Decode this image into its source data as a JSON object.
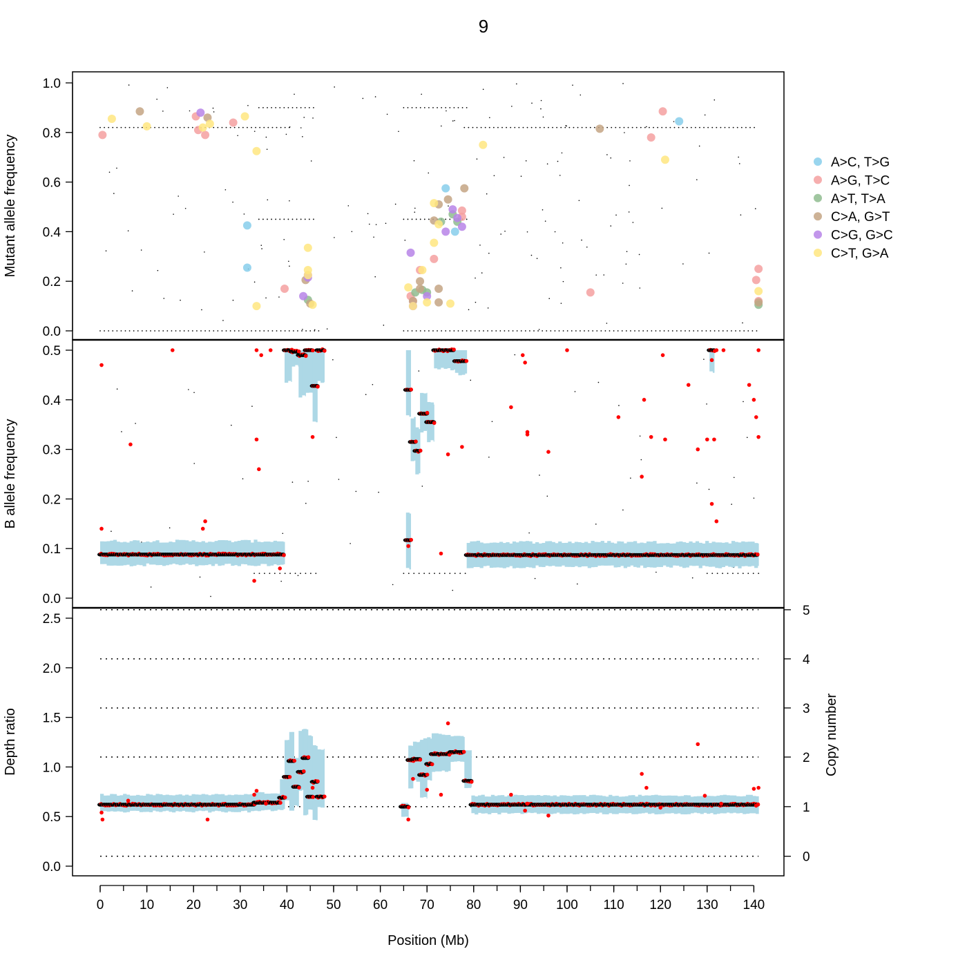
{
  "chart_data": [
    {
      "type": "scatter",
      "panel": "mutant_af",
      "title": "9",
      "ylabel": "Mutant allele frequency",
      "ylim": [
        0,
        1
      ],
      "yticks": [
        "0.0",
        "0.2",
        "0.4",
        "0.6",
        "0.8",
        "1.0"
      ],
      "ytick_values": [
        0,
        0.2,
        0.4,
        0.6,
        0.8,
        1.0
      ],
      "xlim": [
        0,
        141
      ],
      "reference_lines": [
        0,
        0.45,
        0.82,
        0.9
      ],
      "legend": {
        "placement": "right",
        "entries": [
          {
            "label": "A>C, T>G",
            "color": "#87CEEB"
          },
          {
            "label": "A>G, T>C",
            "color": "#F4A0A0"
          },
          {
            "label": "A>T, T>A",
            "color": "#8FBC8F"
          },
          {
            "label": "C>A, G>T",
            "color": "#C4A484"
          },
          {
            "label": "C>G, G>C",
            "color": "#B784E8"
          },
          {
            "label": "C>T, G>A",
            "color": "#FFE680"
          }
        ]
      },
      "series": [
        {
          "name": "A>C, T>G",
          "color": "#87CEEB",
          "points": [
            [
              31.5,
              0.425
            ],
            [
              31.5,
              0.255
            ],
            [
              74,
              0.575
            ],
            [
              76,
              0.4
            ],
            [
              124,
              0.845
            ]
          ]
        },
        {
          "name": "A>G, T>C",
          "color": "#F4A0A0",
          "points": [
            [
              0.5,
              0.79
            ],
            [
              20.5,
              0.865
            ],
            [
              21,
              0.81
            ],
            [
              22.5,
              0.79
            ],
            [
              28.5,
              0.84
            ],
            [
              39.5,
              0.17
            ],
            [
              66.5,
              0.14
            ],
            [
              67,
              0.12
            ],
            [
              68.5,
              0.245
            ],
            [
              71.5,
              0.29
            ],
            [
              77.5,
              0.485
            ],
            [
              77.5,
              0.46
            ],
            [
              105,
              0.155
            ],
            [
              118,
              0.78
            ],
            [
              120.5,
              0.885
            ],
            [
              141,
              0.25
            ],
            [
              140.5,
              0.205
            ],
            [
              141,
              0.12
            ]
          ]
        },
        {
          "name": "A>T, T>A",
          "color": "#8FBC8F",
          "points": [
            [
              44.5,
              0.125
            ],
            [
              67.5,
              0.155
            ],
            [
              69,
              0.165
            ],
            [
              70,
              0.155
            ],
            [
              73,
              0.44
            ],
            [
              75.5,
              0.47
            ],
            [
              76.5,
              0.44
            ],
            [
              141,
              0.105
            ]
          ]
        },
        {
          "name": "C>A, G>T",
          "color": "#C4A484",
          "points": [
            [
              8.5,
              0.885
            ],
            [
              23,
              0.86
            ],
            [
              44,
              0.205
            ],
            [
              45,
              0.11
            ],
            [
              67,
              0.12
            ],
            [
              68.5,
              0.2
            ],
            [
              68.5,
              0.17
            ],
            [
              71.5,
              0.445
            ],
            [
              72.5,
              0.51
            ],
            [
              72.5,
              0.17
            ],
            [
              72.5,
              0.115
            ],
            [
              74.5,
              0.53
            ],
            [
              78,
              0.575
            ],
            [
              107,
              0.815
            ],
            [
              141,
              0.115
            ]
          ]
        },
        {
          "name": "C>G, G>C",
          "color": "#B784E8",
          "points": [
            [
              21.5,
              0.88
            ],
            [
              43.5,
              0.14
            ],
            [
              44.5,
              0.215
            ],
            [
              44.5,
              0.225
            ],
            [
              66.5,
              0.315
            ],
            [
              67,
              0.1
            ],
            [
              70,
              0.14
            ],
            [
              74,
              0.4
            ],
            [
              75.5,
              0.49
            ],
            [
              77.5,
              0.42
            ],
            [
              76.5,
              0.455
            ]
          ]
        },
        {
          "name": "C>T, G>A",
          "color": "#FFE680",
          "points": [
            [
              2.5,
              0.855
            ],
            [
              10,
              0.825
            ],
            [
              22,
              0.82
            ],
            [
              23.5,
              0.835
            ],
            [
              31,
              0.865
            ],
            [
              33.5,
              0.725
            ],
            [
              33.5,
              0.1
            ],
            [
              44.5,
              0.335
            ],
            [
              44.5,
              0.245
            ],
            [
              44.5,
              0.225
            ],
            [
              45.5,
              0.105
            ],
            [
              66,
              0.175
            ],
            [
              67,
              0.1
            ],
            [
              69,
              0.245
            ],
            [
              70,
              0.115
            ],
            [
              71.5,
              0.515
            ],
            [
              71.5,
              0.355
            ],
            [
              72.5,
              0.43
            ],
            [
              75,
              0.11
            ],
            [
              82,
              0.75
            ],
            [
              121,
              0.69
            ],
            [
              141,
              0.16
            ]
          ]
        }
      ]
    },
    {
      "type": "scatter",
      "panel": "baf",
      "ylabel": "B allele frequency",
      "ylim": [
        0,
        0.5
      ],
      "yticks": [
        "0.0",
        "0.1",
        "0.2",
        "0.3",
        "0.4",
        "0.5"
      ],
      "ytick_values": [
        0,
        0.1,
        0.2,
        0.3,
        0.4,
        0.5
      ],
      "xlim": [
        0,
        141
      ],
      "reference_lines": [
        0.05,
        0.5
      ],
      "segments": [
        {
          "x": [
            0,
            39.5
          ],
          "y": 0.088,
          "low": 0.07,
          "high": 0.112
        },
        {
          "x": [
            39.5,
            41
          ],
          "y": 0.5,
          "low": 0.44,
          "high": 0.5
        },
        {
          "x": [
            41,
            42.5
          ],
          "y": 0.497,
          "low": 0.47,
          "high": 0.5
        },
        {
          "x": [
            42.5,
            44
          ],
          "y": 0.49,
          "low": 0.41,
          "high": 0.5
        },
        {
          "x": [
            44,
            45.5
          ],
          "y": 0.5,
          "low": 0.42,
          "high": 0.5
        },
        {
          "x": [
            45.5,
            46.5
          ],
          "y": 0.428,
          "low": 0.36,
          "high": 0.5
        },
        {
          "x": [
            46.5,
            48
          ],
          "y": 0.5,
          "low": 0.44,
          "high": 0.5
        },
        {
          "x": [
            65.5,
            66.5
          ],
          "y": 0.42,
          "low": 0.37,
          "high": 0.5
        },
        {
          "x": [
            66.5,
            67.5
          ],
          "y": 0.315,
          "low": 0.28,
          "high": 0.36
        },
        {
          "x": [
            67.5,
            68.5
          ],
          "y": 0.297,
          "low": 0.255,
          "high": 0.34
        },
        {
          "x": [
            68.5,
            70
          ],
          "y": 0.372,
          "low": 0.34,
          "high": 0.41
        },
        {
          "x": [
            70,
            71.5
          ],
          "y": 0.355,
          "low": 0.32,
          "high": 0.39
        },
        {
          "x": [
            71.5,
            76
          ],
          "y": 0.5,
          "low": 0.465,
          "high": 0.5
        },
        {
          "x": [
            76,
            78.5
          ],
          "y": 0.478,
          "low": 0.455,
          "high": 0.5
        },
        {
          "x": [
            65.5,
            66.5
          ],
          "y": 0.117,
          "low": 0.063,
          "high": 0.17
        },
        {
          "x": [
            78.5,
            141
          ],
          "y": 0.087,
          "low": 0.066,
          "high": 0.11
        },
        {
          "x": [
            130.5,
            131.5
          ],
          "y": 0.5,
          "low": 0.46,
          "high": 0.5
        }
      ],
      "outliers": [
        [
          0.3,
          0.47
        ],
        [
          0.3,
          0.14
        ],
        [
          6.5,
          0.31
        ],
        [
          15.5,
          0.5
        ],
        [
          22,
          0.14
        ],
        [
          22.5,
          0.155
        ],
        [
          33,
          0.035
        ],
        [
          33.5,
          0.32
        ],
        [
          34,
          0.26
        ],
        [
          33.5,
          0.5
        ],
        [
          34.5,
          0.49
        ],
        [
          36.5,
          0.5
        ],
        [
          38.5,
          0.06
        ],
        [
          45.5,
          0.325
        ],
        [
          66,
          0.105
        ],
        [
          73,
          0.09
        ],
        [
          74.5,
          0.29
        ],
        [
          77.5,
          0.305
        ],
        [
          88,
          0.385
        ],
        [
          90.5,
          0.49
        ],
        [
          91,
          0.475
        ],
        [
          91.5,
          0.335
        ],
        [
          91.5,
          0.33
        ],
        [
          96,
          0.295
        ],
        [
          100,
          0.5
        ],
        [
          111,
          0.365
        ],
        [
          116,
          0.245
        ],
        [
          116.5,
          0.4
        ],
        [
          118,
          0.325
        ],
        [
          120.5,
          0.49
        ],
        [
          121,
          0.32
        ],
        [
          126,
          0.43
        ],
        [
          128,
          0.3
        ],
        [
          130,
          0.32
        ],
        [
          131,
          0.19
        ],
        [
          131,
          0.48
        ],
        [
          131.5,
          0.32
        ],
        [
          132,
          0.155
        ],
        [
          132,
          0.5
        ],
        [
          133.5,
          0.5
        ],
        [
          139,
          0.43
        ],
        [
          140,
          0.4
        ],
        [
          140.5,
          0.365
        ],
        [
          141,
          0.325
        ],
        [
          141,
          0.5
        ]
      ]
    },
    {
      "type": "scatter",
      "panel": "depth_ratio",
      "ylabel": "Depth ratio",
      "ylabel_right": "Copy number",
      "xlabel": "Position (Mb)",
      "ylim": [
        -0.1,
        2.6
      ],
      "yticks": [
        "0.0",
        "0.5",
        "1.0",
        "1.5",
        "2.0",
        "2.5"
      ],
      "ytick_values": [
        0,
        0.5,
        1.0,
        1.5,
        2.0,
        2.5
      ],
      "right_ticks": [
        "0",
        "1",
        "2",
        "3",
        "4",
        "5"
      ],
      "copy_number_ratios": [
        0.1,
        0.6,
        1.1,
        1.595,
        2.09,
        2.585
      ],
      "xticks": [
        "0",
        "10",
        "20",
        "30",
        "40",
        "50",
        "60",
        "70",
        "80",
        "90",
        "100",
        "110",
        "120",
        "130",
        "140"
      ],
      "xtick_values": [
        0,
        10,
        20,
        30,
        40,
        50,
        60,
        70,
        80,
        90,
        100,
        110,
        120,
        130,
        140
      ],
      "xlim": [
        0,
        141
      ],
      "segments": [
        {
          "x": [
            0,
            33
          ],
          "y": 0.62,
          "low": 0.56,
          "high": 0.71
        },
        {
          "x": [
            33,
            38.5
          ],
          "y": 0.64,
          "low": 0.57,
          "high": 0.73
        },
        {
          "x": [
            38.5,
            39.5
          ],
          "y": 0.69,
          "low": 0.58,
          "high": 0.86
        },
        {
          "x": [
            39.5,
            40.5
          ],
          "y": 0.9,
          "low": 0.68,
          "high": 1.27
        },
        {
          "x": [
            40.5,
            41.5
          ],
          "y": 1.06,
          "low": 0.56,
          "high": 1.34
        },
        {
          "x": [
            41.5,
            42.5
          ],
          "y": 0.8,
          "low": 0.62,
          "high": 1.09
        },
        {
          "x": [
            42.5,
            43.5
          ],
          "y": 0.95,
          "low": 0.77,
          "high": 1.36
        },
        {
          "x": [
            43.5,
            44.5
          ],
          "y": 1.09,
          "low": 0.53,
          "high": 1.37
        },
        {
          "x": [
            44.5,
            45.5
          ],
          "y": 0.7,
          "low": 0.58,
          "high": 1.31
        },
        {
          "x": [
            45.5,
            46.5
          ],
          "y": 0.85,
          "low": 0.47,
          "high": 1.21
        },
        {
          "x": [
            46.5,
            48
          ],
          "y": 0.7,
          "low": 0.6,
          "high": 1.17
        },
        {
          "x": [
            64.5,
            66
          ],
          "y": 0.6,
          "low": 0.5,
          "high": 0.62
        },
        {
          "x": [
            66,
            67
          ],
          "y": 1.07,
          "low": 0.8,
          "high": 1.21
        },
        {
          "x": [
            67,
            68.5
          ],
          "y": 1.08,
          "low": 0.87,
          "high": 1.24
        },
        {
          "x": [
            68.5,
            70
          ],
          "y": 0.92,
          "low": 0.7,
          "high": 1.27
        },
        {
          "x": [
            70,
            71
          ],
          "y": 1.03,
          "low": 0.87,
          "high": 1.28
        },
        {
          "x": [
            71,
            75
          ],
          "y": 1.13,
          "low": 0.97,
          "high": 1.32
        },
        {
          "x": [
            75,
            78
          ],
          "y": 1.15,
          "low": 1.06,
          "high": 1.3
        },
        {
          "x": [
            78,
            79.5
          ],
          "y": 0.86,
          "low": 0.8,
          "high": 1.16
        },
        {
          "x": [
            79.5,
            141
          ],
          "y": 0.62,
          "low": 0.54,
          "high": 0.7
        }
      ],
      "outliers": [
        [
          0.3,
          0.54
        ],
        [
          0.5,
          0.47
        ],
        [
          6,
          0.66
        ],
        [
          23,
          0.47
        ],
        [
          33,
          0.72
        ],
        [
          33.5,
          0.76
        ],
        [
          35.5,
          0.63
        ],
        [
          45.5,
          0.79
        ],
        [
          66,
          0.47
        ],
        [
          67,
          0.88
        ],
        [
          70,
          0.77
        ],
        [
          73,
          0.72
        ],
        [
          74.5,
          1.44
        ],
        [
          88,
          0.72
        ],
        [
          91,
          0.56
        ],
        [
          91.5,
          0.63
        ],
        [
          96,
          0.51
        ],
        [
          116,
          0.93
        ],
        [
          117,
          0.79
        ],
        [
          120,
          0.59
        ],
        [
          128,
          1.23
        ],
        [
          129.5,
          0.71
        ],
        [
          133,
          0.63
        ],
        [
          140,
          0.78
        ],
        [
          140.5,
          0.61
        ],
        [
          141,
          0.79
        ]
      ]
    }
  ]
}
